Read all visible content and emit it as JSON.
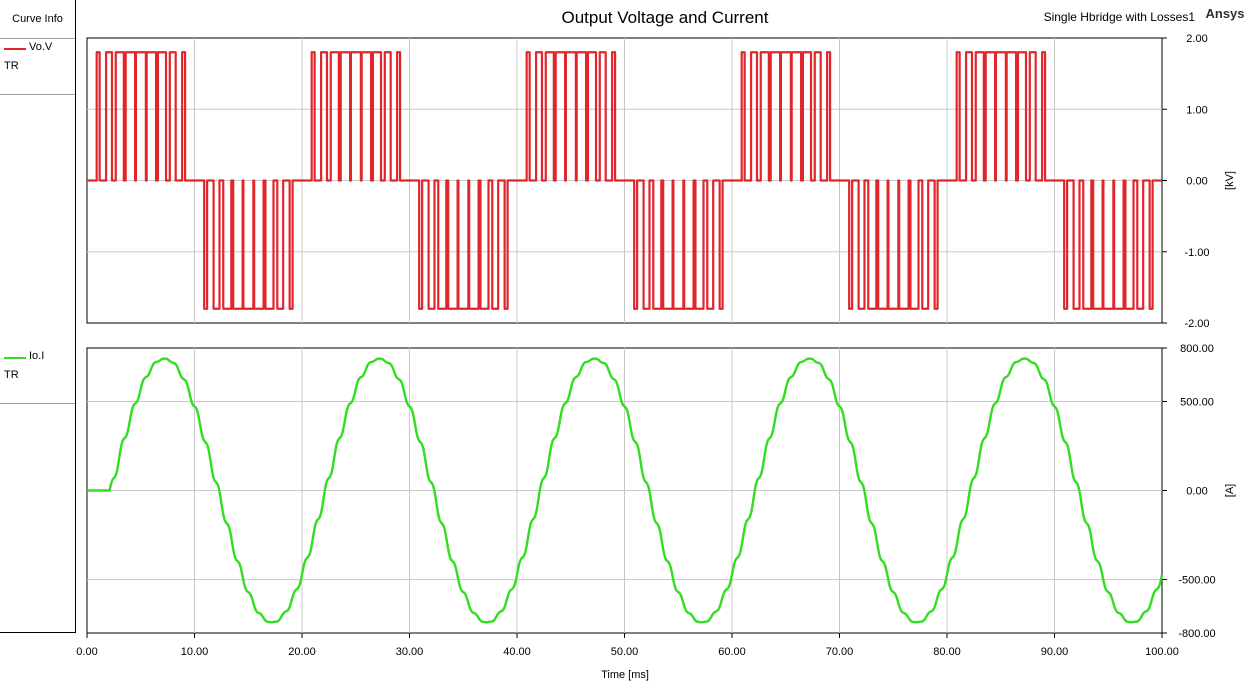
{
  "header": {
    "title": "Output Voltage and Current",
    "design_name": "Single Hbridge with Losses1",
    "brand": "Ansys"
  },
  "legend": {
    "header": "Curve Info",
    "items": [
      {
        "name": "Vo.V",
        "sub": "TR",
        "color": "#e0262b"
      },
      {
        "name": "Io.I",
        "sub": "TR",
        "color": "#33dd22"
      }
    ]
  },
  "chart_data": [
    {
      "type": "line",
      "title": "Output Voltage and Current",
      "xlabel": "Time [ms]",
      "ylabel": "[kV]",
      "xlim": [
        0,
        100
      ],
      "ylim": [
        -2,
        2
      ],
      "x_ticks": [
        "0.00",
        "10.00",
        "20.00",
        "30.00",
        "40.00",
        "50.00",
        "60.00",
        "70.00",
        "80.00",
        "90.00",
        "100.00"
      ],
      "y_ticks": [
        "2.00",
        "1.00",
        "0.00",
        "-1.00",
        "-2.00"
      ],
      "grid": true,
      "series": [
        {
          "name": "Vo.V",
          "color": "#e0262b",
          "waveform": "pwm-multilevel",
          "levels": [
            -1.8,
            0,
            1.8
          ],
          "fundamental_period_ms": 20
        }
      ]
    },
    {
      "type": "line",
      "xlabel": "Time [ms]",
      "ylabel": "[A]",
      "xlim": [
        0,
        100
      ],
      "ylim": [
        -800,
        800
      ],
      "x_ticks": [
        "0.00",
        "10.00",
        "20.00",
        "30.00",
        "40.00",
        "50.00",
        "60.00",
        "70.00",
        "80.00",
        "90.00",
        "100.00"
      ],
      "y_ticks": [
        "800.00",
        "500.00",
        "0.00",
        "-500.00",
        "-800.00"
      ],
      "grid": true,
      "series": [
        {
          "name": "Io.I",
          "color": "#33dd22",
          "waveform": "sine-with-ripple",
          "amplitude": 740,
          "fundamental_period_ms": 20,
          "phase_lag_ms": 2.2
        }
      ]
    }
  ]
}
